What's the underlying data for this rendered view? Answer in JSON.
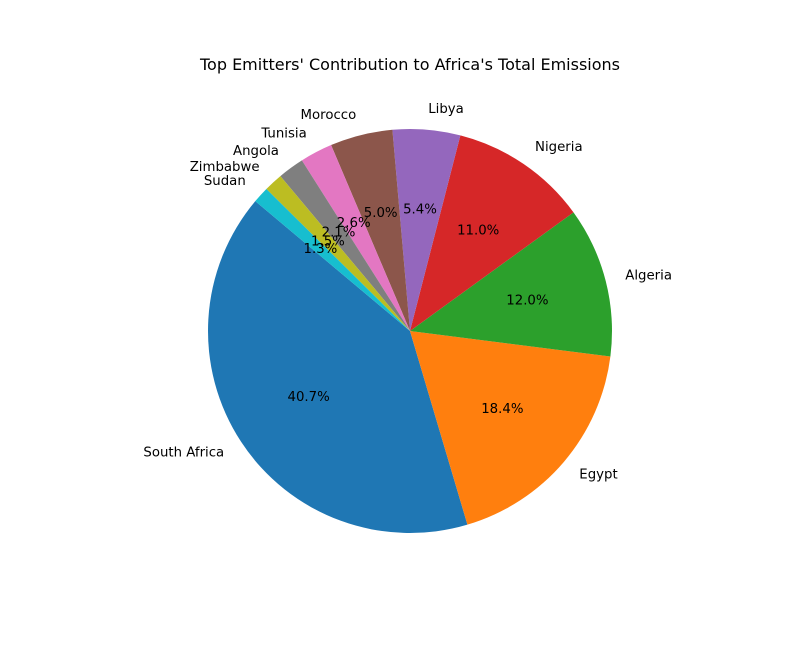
{
  "chart_data": {
    "type": "pie",
    "title": "Top Emitters' Contribution to Africa's Total Emissions",
    "start_angle_deg": 140,
    "direction": "counterclockwise",
    "legend": "none",
    "slices": [
      {
        "label": "South Africa",
        "value": 40.7,
        "pct_label": "40.7%",
        "color": "#1f77b4"
      },
      {
        "label": "Egypt",
        "value": 18.4,
        "pct_label": "18.4%",
        "color": "#ff7f0e"
      },
      {
        "label": "Algeria",
        "value": 12.0,
        "pct_label": "12.0%",
        "color": "#2ca02c"
      },
      {
        "label": "Nigeria",
        "value": 11.0,
        "pct_label": "11.0%",
        "color": "#d62728"
      },
      {
        "label": "Libya",
        "value": 5.4,
        "pct_label": "5.4%",
        "color": "#9467bd"
      },
      {
        "label": "Morocco",
        "value": 5.0,
        "pct_label": "5.0%",
        "color": "#8c564b"
      },
      {
        "label": "Tunisia",
        "value": 2.6,
        "pct_label": "2.6%",
        "color": "#e377c2"
      },
      {
        "label": "Angola",
        "value": 2.1,
        "pct_label": "2.1%",
        "color": "#7f7f7f"
      },
      {
        "label": "Zimbabwe",
        "value": 1.5,
        "pct_label": "1.5%",
        "color": "#bcbd22"
      },
      {
        "label": "Sudan",
        "value": 1.3,
        "pct_label": "1.3%",
        "color": "#17becf"
      }
    ]
  }
}
